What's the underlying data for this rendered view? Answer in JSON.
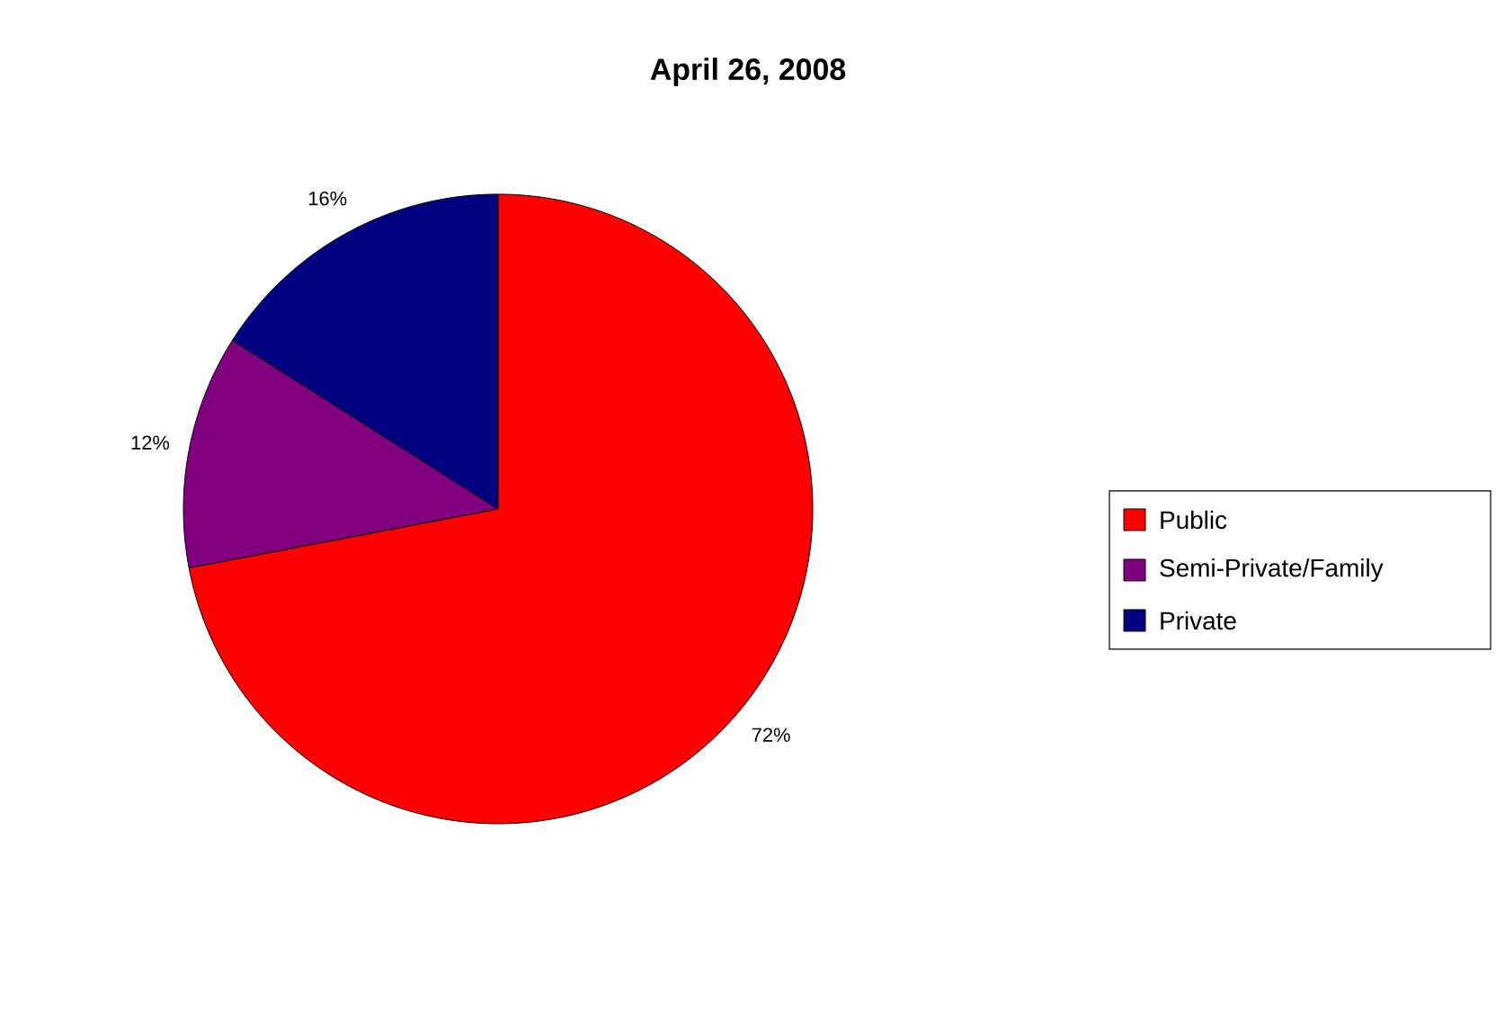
{
  "chart_data": {
    "type": "pie",
    "title": "April 26, 2008",
    "categories": [
      "Public",
      "Semi-Private/Family",
      "Private"
    ],
    "values": [
      72,
      12,
      16
    ],
    "value_labels": [
      "72%",
      "12%",
      "16%"
    ],
    "colors": [
      "#ff0000",
      "#800080",
      "#000080"
    ],
    "legend": "right"
  }
}
